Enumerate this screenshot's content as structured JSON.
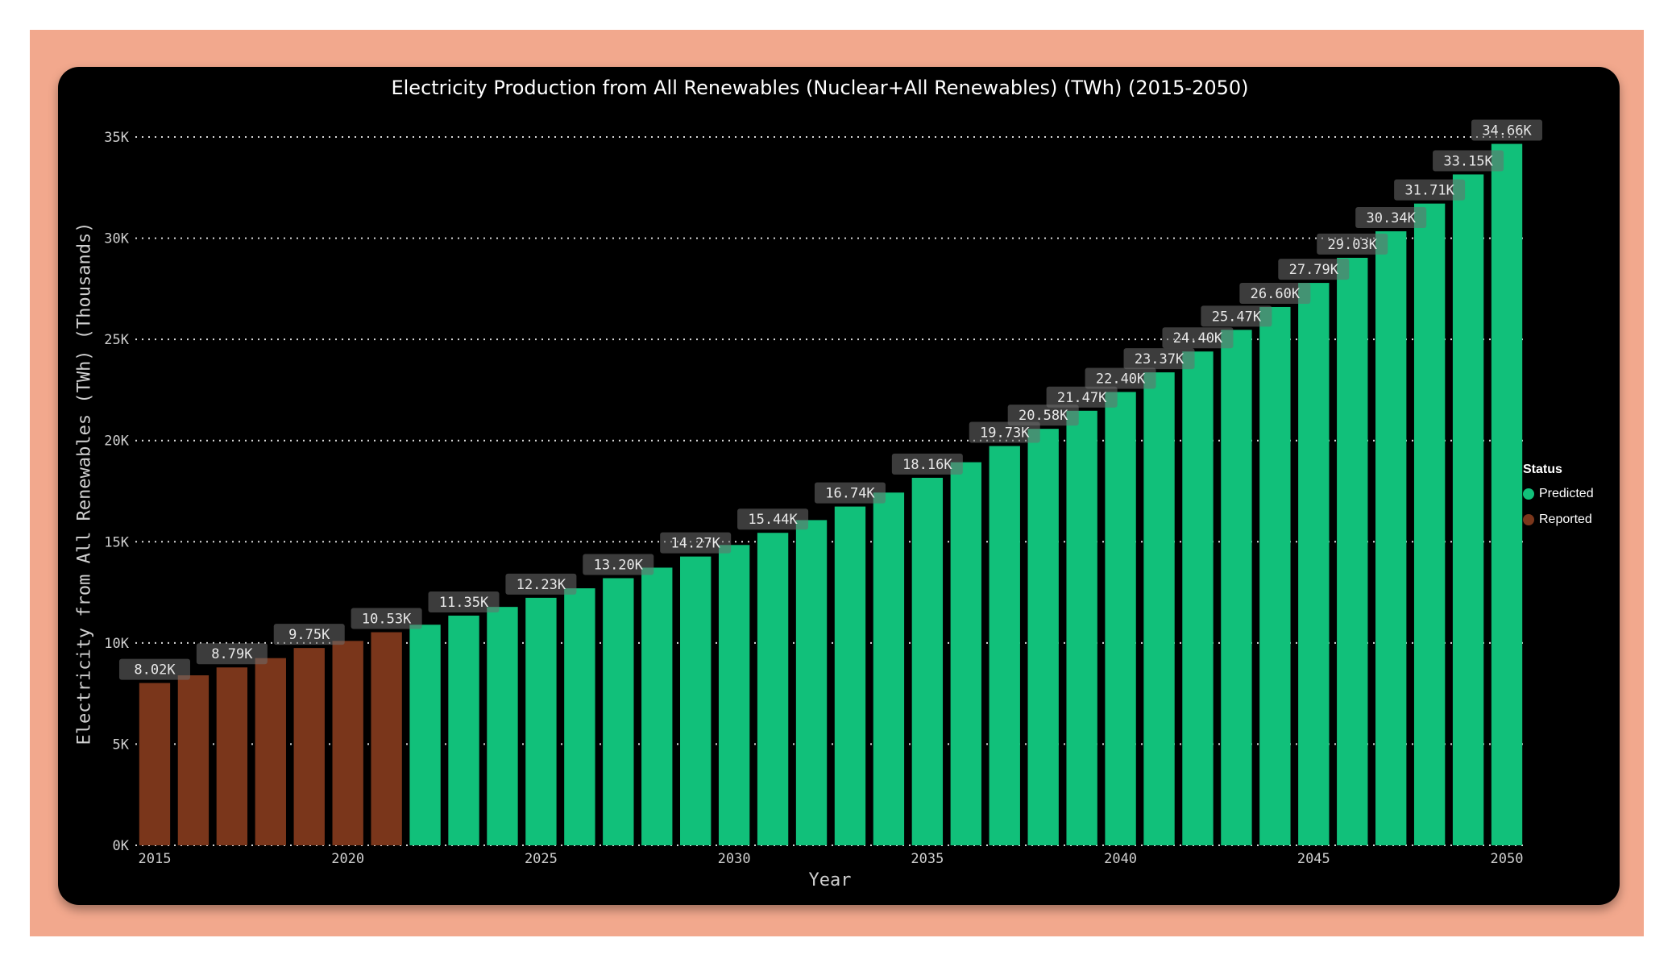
{
  "chart_data": {
    "type": "bar",
    "title": "Electricity Production from All Renewables (Nuclear+All Renewables) (TWh) (2015-2050)",
    "xlabel": "Year",
    "ylabel": "Electricity from All Renewables (TWh) (Thousands)",
    "ylim": [
      0,
      35000
    ],
    "yticks": [
      0,
      5000,
      10000,
      15000,
      20000,
      25000,
      30000,
      35000
    ],
    "ytick_labels": [
      "0K",
      "5K",
      "10K",
      "15K",
      "20K",
      "25K",
      "30K",
      "35K"
    ],
    "xticks": [
      "2015",
      "2020",
      "2025",
      "2030",
      "2035",
      "2040",
      "2045",
      "2050"
    ],
    "grid": "horizontal dotted",
    "legend": {
      "title": "Status",
      "position": "right",
      "items": [
        {
          "label": "Predicted",
          "color": "#11c07a"
        },
        {
          "label": "Reported",
          "color": "#7a361b"
        }
      ]
    },
    "series_colors": {
      "Reported": "#7a361b",
      "Predicted": "#11c07a"
    },
    "bars": [
      {
        "year": 2015,
        "value": 8020,
        "status": "Reported",
        "label": "8.02K"
      },
      {
        "year": 2016,
        "value": 8400,
        "status": "Reported",
        "label": ""
      },
      {
        "year": 2017,
        "value": 8790,
        "status": "Reported",
        "label": "8.79K"
      },
      {
        "year": 2018,
        "value": 9250,
        "status": "Reported",
        "label": ""
      },
      {
        "year": 2019,
        "value": 9750,
        "status": "Reported",
        "label": "9.75K"
      },
      {
        "year": 2020,
        "value": 10100,
        "status": "Reported",
        "label": ""
      },
      {
        "year": 2021,
        "value": 10530,
        "status": "Reported",
        "label": "10.53K"
      },
      {
        "year": 2022,
        "value": 10900,
        "status": "Predicted",
        "label": ""
      },
      {
        "year": 2023,
        "value": 11350,
        "status": "Predicted",
        "label": "11.35K"
      },
      {
        "year": 2024,
        "value": 11780,
        "status": "Predicted",
        "label": ""
      },
      {
        "year": 2025,
        "value": 12230,
        "status": "Predicted",
        "label": "12.23K"
      },
      {
        "year": 2026,
        "value": 12700,
        "status": "Predicted",
        "label": ""
      },
      {
        "year": 2027,
        "value": 13200,
        "status": "Predicted",
        "label": "13.20K"
      },
      {
        "year": 2028,
        "value": 13720,
        "status": "Predicted",
        "label": ""
      },
      {
        "year": 2029,
        "value": 14270,
        "status": "Predicted",
        "label": "14.27K"
      },
      {
        "year": 2030,
        "value": 14840,
        "status": "Predicted",
        "label": ""
      },
      {
        "year": 2031,
        "value": 15440,
        "status": "Predicted",
        "label": "15.44K"
      },
      {
        "year": 2032,
        "value": 16070,
        "status": "Predicted",
        "label": ""
      },
      {
        "year": 2033,
        "value": 16740,
        "status": "Predicted",
        "label": "16.74K"
      },
      {
        "year": 2034,
        "value": 17430,
        "status": "Predicted",
        "label": ""
      },
      {
        "year": 2035,
        "value": 18160,
        "status": "Predicted",
        "label": "18.16K"
      },
      {
        "year": 2036,
        "value": 18930,
        "status": "Predicted",
        "label": ""
      },
      {
        "year": 2037,
        "value": 19730,
        "status": "Predicted",
        "label": "19.73K"
      },
      {
        "year": 2038,
        "value": 20580,
        "status": "Predicted",
        "label": "20.58K"
      },
      {
        "year": 2039,
        "value": 21470,
        "status": "Predicted",
        "label": "21.47K"
      },
      {
        "year": 2040,
        "value": 22400,
        "status": "Predicted",
        "label": "22.40K"
      },
      {
        "year": 2041,
        "value": 23370,
        "status": "Predicted",
        "label": "23.37K"
      },
      {
        "year": 2042,
        "value": 24400,
        "status": "Predicted",
        "label": "24.40K"
      },
      {
        "year": 2043,
        "value": 25470,
        "status": "Predicted",
        "label": "25.47K"
      },
      {
        "year": 2044,
        "value": 26600,
        "status": "Predicted",
        "label": "26.60K"
      },
      {
        "year": 2045,
        "value": 27790,
        "status": "Predicted",
        "label": "27.79K"
      },
      {
        "year": 2046,
        "value": 29030,
        "status": "Predicted",
        "label": "29.03K"
      },
      {
        "year": 2047,
        "value": 30340,
        "status": "Predicted",
        "label": "30.34K"
      },
      {
        "year": 2048,
        "value": 31710,
        "status": "Predicted",
        "label": "31.71K"
      },
      {
        "year": 2049,
        "value": 33150,
        "status": "Predicted",
        "label": "33.15K"
      },
      {
        "year": 2050,
        "value": 34660,
        "status": "Predicted",
        "label": "34.66K"
      }
    ]
  }
}
